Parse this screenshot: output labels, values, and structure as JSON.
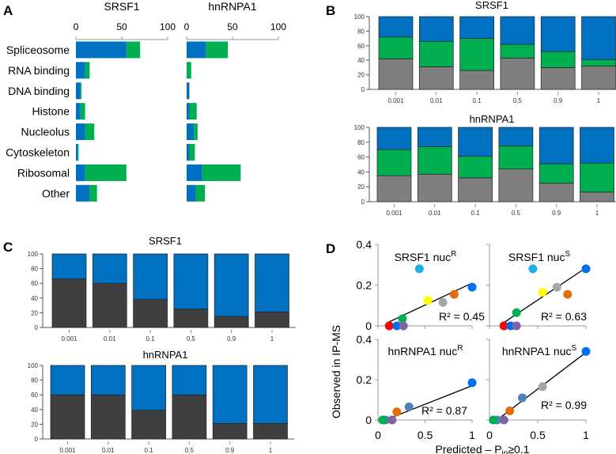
{
  "panel_letters": [
    "A",
    "B",
    "C",
    "D"
  ],
  "colors": {
    "blue": "#0070c0",
    "green": "#00b050",
    "gray": "#7f7f7f",
    "dark": "#3f3f3f"
  },
  "chart_data": [
    {
      "id": "A",
      "type": "bar",
      "orientation": "horizontal",
      "stacked": true,
      "categories": [
        "Spliceosome",
        "RNA binding",
        "DNA binding",
        "Histone",
        "Nucleolus",
        "Cytoskeleton",
        "Ribosomal",
        "Other"
      ],
      "xlim": [
        0,
        100
      ],
      "xticks": [
        "0",
        "50",
        "100"
      ],
      "subplots": [
        {
          "title": "SRSF1",
          "series": [
            {
              "name": "blue",
              "values": [
                55,
                10,
                5,
                5,
                10,
                2,
                10,
                15
              ]
            },
            {
              "name": "green",
              "values": [
                15,
                5,
                1,
                5,
                10,
                1,
                45,
                8
              ]
            }
          ]
        },
        {
          "title": "hnRNPA1",
          "series": [
            {
              "name": "blue",
              "values": [
                21,
                0,
                3,
                3,
                8,
                3,
                17,
                10
              ]
            },
            {
              "name": "green",
              "values": [
                24,
                5,
                0,
                8,
                4,
                6,
                42,
                10
              ]
            }
          ]
        }
      ]
    },
    {
      "id": "B",
      "type": "bar",
      "stacked": true,
      "categories": [
        "0.001",
        "0.01",
        "0.1",
        "0.5",
        "0.9",
        "1"
      ],
      "ylim": [
        0,
        100
      ],
      "yticks": [
        "0",
        "20",
        "40",
        "60",
        "80",
        "100"
      ],
      "subplots": [
        {
          "title": "SRSF1",
          "series": [
            {
              "name": "gray",
              "values": [
                42,
                31,
                26,
                43,
                30,
                32
              ]
            },
            {
              "name": "green",
              "values": [
                30,
                35,
                44,
                19,
                22,
                9
              ]
            },
            {
              "name": "blue",
              "values": [
                28,
                34,
                30,
                38,
                48,
                59
              ]
            }
          ]
        },
        {
          "title": "hnRNPA1",
          "series": [
            {
              "name": "gray",
              "values": [
                35,
                37,
                32,
                44,
                25,
                13
              ]
            },
            {
              "name": "green",
              "values": [
                35,
                37,
                29,
                31,
                26,
                39
              ]
            },
            {
              "name": "blue",
              "values": [
                30,
                26,
                39,
                25,
                49,
                48
              ]
            }
          ]
        }
      ]
    },
    {
      "id": "C",
      "type": "bar",
      "stacked": true,
      "categories": [
        "0.001",
        "0.01",
        "0.1",
        "0.5",
        "0.9",
        "1"
      ],
      "ylim": [
        0,
        100
      ],
      "yticks": [
        "0",
        "20",
        "40",
        "60",
        "80",
        "100"
      ],
      "subplots": [
        {
          "title": "SRSF1",
          "series": [
            {
              "name": "dark",
              "values": [
                66,
                60,
                38,
                25,
                15,
                21
              ]
            },
            {
              "name": "blue",
              "values": [
                34,
                40,
                62,
                75,
                85,
                79
              ]
            }
          ]
        },
        {
          "title": "hnRNPA1",
          "series": [
            {
              "name": "dark",
              "values": [
                60,
                60,
                39,
                60,
                21,
                21
              ]
            },
            {
              "name": "blue",
              "values": [
                40,
                40,
                61,
                40,
                79,
                79
              ]
            }
          ]
        }
      ]
    },
    {
      "id": "D",
      "type": "scatter",
      "xlabel_main": "Predicted – P",
      "xlabel_sub": "in",
      "xlabel_tail": "≥0.1",
      "ylabel": "Observed in IP-MS",
      "xlim": [
        0,
        1
      ],
      "ylim": [
        0,
        0.4
      ],
      "xticks": [
        "0",
        "0.5",
        "1"
      ],
      "yticks": [
        "0",
        "0.2",
        "0.4"
      ],
      "subplots": [
        {
          "title": "SRSF1 nuc",
          "sup": "R",
          "r2": "R² = 0.45",
          "fit": [
            [
              0.12,
              0.02
            ],
            [
              1,
              0.21
            ]
          ],
          "points": [
            {
              "x": 0.44,
              "y": 0.28,
              "c": "#1ab0ea"
            },
            {
              "x": 0.53,
              "y": 0.125,
              "c": "#ffff00"
            },
            {
              "x": 0.69,
              "y": 0.115,
              "c": "#a6a6a6"
            },
            {
              "x": 0.81,
              "y": 0.155,
              "c": "#e46c0a"
            },
            {
              "x": 1,
              "y": 0.19,
              "c": "#0070f0"
            },
            {
              "x": 0.26,
              "y": 0.035,
              "c": "#00b050"
            },
            {
              "x": 0.12,
              "y": 0,
              "c": "#ff0000"
            },
            {
              "x": 0.2,
              "y": 0,
              "c": "#0070f0"
            },
            {
              "x": 0.27,
              "y": 0,
              "c": "#8064a2"
            }
          ]
        },
        {
          "title": "SRSF1 nuc",
          "sup": "S",
          "r2": "R² = 0.63",
          "fit": [
            [
              0.13,
              0.01
            ],
            [
              1,
              0.285
            ]
          ],
          "points": [
            {
              "x": 0.45,
              "y": 0.28,
              "c": "#1ab0ea"
            },
            {
              "x": 0.55,
              "y": 0.165,
              "c": "#ffff00"
            },
            {
              "x": 0.7,
              "y": 0.19,
              "c": "#a6a6a6"
            },
            {
              "x": 0.81,
              "y": 0.155,
              "c": "#e46c0a"
            },
            {
              "x": 1,
              "y": 0.28,
              "c": "#0070f0"
            },
            {
              "x": 0.28,
              "y": 0.065,
              "c": "#00b050"
            },
            {
              "x": 0.15,
              "y": 0,
              "c": "#ff0000"
            },
            {
              "x": 0.22,
              "y": 0,
              "c": "#0070f0"
            },
            {
              "x": 0.28,
              "y": 0,
              "c": "#8064a2"
            }
          ]
        },
        {
          "title": "hnRNPA1 nuc",
          "sup": "R",
          "r2": "R² = 0.87",
          "fit": [
            [
              0.05,
              -0.005
            ],
            [
              1,
              0.17
            ]
          ],
          "points": [
            {
              "x": 0.2,
              "y": 0.04,
              "c": "#e46c0a"
            },
            {
              "x": 0.33,
              "y": 0.065,
              "c": "#4f81bd"
            },
            {
              "x": 1,
              "y": 0.185,
              "c": "#0070f0"
            },
            {
              "x": 0.08,
              "y": 0,
              "c": "#4f81bd"
            },
            {
              "x": 0.05,
              "y": 0,
              "c": "#00b050"
            },
            {
              "x": 0.15,
              "y": 0,
              "c": "#8064a2"
            }
          ]
        },
        {
          "title": "hnRNPA1 nuc",
          "sup": "S",
          "r2": "R² = 0.99",
          "fit": [
            [
              0.05,
              -0.01
            ],
            [
              1,
              0.335
            ]
          ],
          "points": [
            {
              "x": 0.21,
              "y": 0.045,
              "c": "#e46c0a"
            },
            {
              "x": 0.34,
              "y": 0.11,
              "c": "#4f81bd"
            },
            {
              "x": 0.55,
              "y": 0.165,
              "c": "#a6a6a6"
            },
            {
              "x": 1,
              "y": 0.34,
              "c": "#0070f0"
            },
            {
              "x": 0.08,
              "y": 0,
              "c": "#4f81bd"
            },
            {
              "x": 0.04,
              "y": 0,
              "c": "#00b050"
            },
            {
              "x": 0.15,
              "y": 0,
              "c": "#8064a2"
            }
          ]
        }
      ]
    }
  ]
}
